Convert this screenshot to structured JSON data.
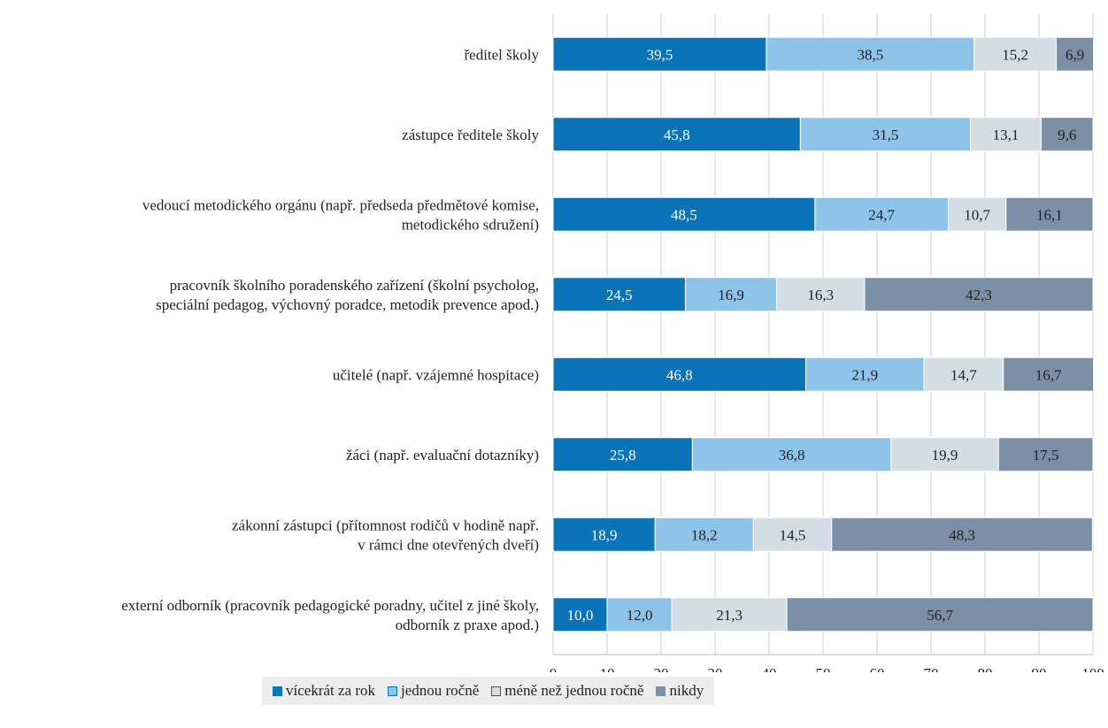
{
  "chart_data": {
    "type": "bar",
    "orientation": "horizontal",
    "stacked": true,
    "categories": [
      [
        "ředitel školy"
      ],
      [
        "zástupce ředitele školy"
      ],
      [
        "vedoucí metodického orgánu (např. předseda předmětové komise,",
        "metodického sdružení)"
      ],
      [
        "pracovník školního poradenského zařízení (školní psycholog,",
        "speciální pedagog, výchovný poradce, metodik prevence apod.)"
      ],
      [
        "učitelé (např. vzájemné hospitace)"
      ],
      [
        "žáci (např. evaluační dotazníky)"
      ],
      [
        "zákonní zástupci (přítomnost rodičů v hodině např.",
        "v rámci dne otevřených dveří)"
      ],
      [
        "externí odborník (pracovník pedagogické poradny, učitel z jiné školy,",
        "odborník z praxe apod.)"
      ]
    ],
    "series": [
      {
        "name": "vícekrát za rok",
        "color": "#0b74b8",
        "label_color": "#ffffff",
        "values": [
          39.5,
          45.8,
          48.5,
          24.5,
          46.8,
          25.8,
          18.9,
          10.0
        ],
        "labels": [
          "39,5",
          "45,8",
          "48,5",
          "24,5",
          "46,8",
          "25,8",
          "18,9",
          "10,0"
        ]
      },
      {
        "name": "jednou ročně",
        "color": "#8fc4ea",
        "label_color": "#222222",
        "values": [
          38.5,
          31.5,
          24.7,
          16.9,
          21.9,
          36.8,
          18.2,
          12.0
        ],
        "labels": [
          "38,5",
          "31,5",
          "24,7",
          "16,9",
          "21,9",
          "36,8",
          "18,2",
          "12,0"
        ]
      },
      {
        "name": "méně než jednou ročně",
        "color": "#d5dde4",
        "label_color": "#222222",
        "values": [
          15.2,
          13.1,
          10.7,
          16.3,
          14.7,
          19.9,
          14.5,
          21.3
        ],
        "labels": [
          "15,2",
          "13,1",
          "10,7",
          "16,3",
          "14,7",
          "19,9",
          "14,5",
          "21,3"
        ]
      },
      {
        "name": "nikdy",
        "color": "#7b8fa6",
        "label_color": "#222222",
        "values": [
          6.9,
          9.6,
          16.1,
          42.3,
          16.7,
          17.5,
          48.3,
          56.7
        ],
        "labels": [
          "6,9",
          "9,6",
          "16,1",
          "42,3",
          "16,7",
          "17,5",
          "48,3",
          "56,7"
        ]
      }
    ],
    "xlim": [
      0,
      100
    ],
    "xticks": [
      "0",
      "10",
      "20",
      "30",
      "40",
      "50",
      "60",
      "70",
      "80",
      "90",
      "100"
    ],
    "grid": true,
    "legend": "bottom"
  }
}
